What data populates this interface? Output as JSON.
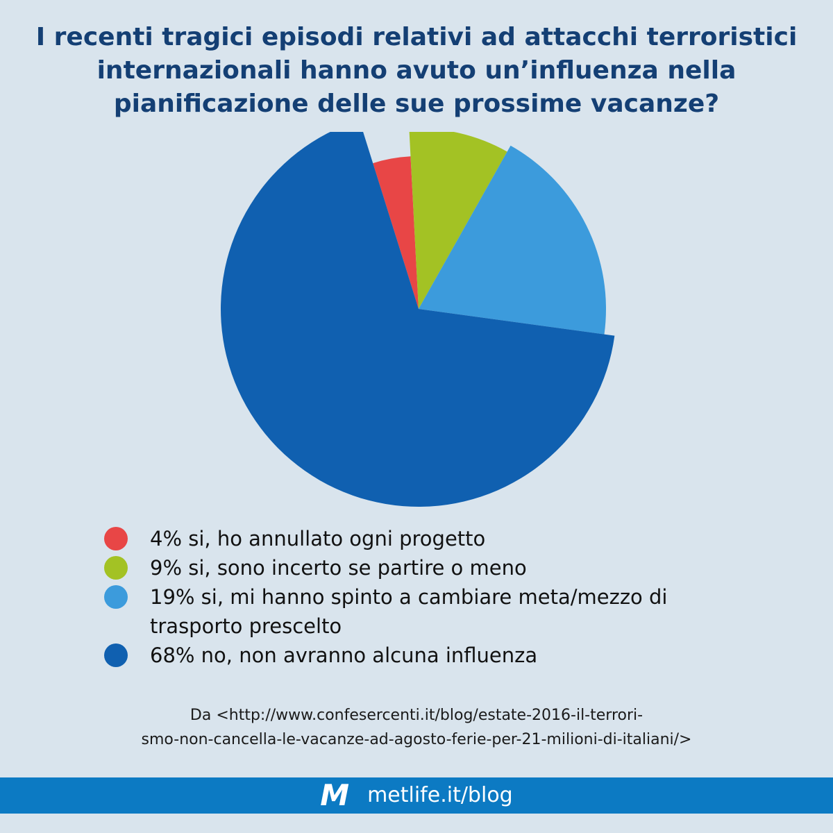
{
  "title": {
    "lines": [
      "I recenti tragici episodi relativi ad attacchi terroristici",
      "internazionali hanno avuto un’influenza nella",
      "pianificazione delle sue prossime vacanze?"
    ]
  },
  "chart_data": {
    "type": "pie",
    "title": "I recenti tragici episodi relativi ad attacchi terroristici internazionali hanno avuto un’influenza nella pianificazione delle sue prossime vacanze?",
    "categories": [
      "si, ho annullato ogni progetto",
      "si, sono incerto se partire o meno",
      "si, mi hanno spinto a cambiare meta/mezzo di trasporto prescelto",
      "no, non avranno alcuna influenza"
    ],
    "values": [
      4,
      9,
      19,
      68
    ],
    "colors": [
      "#e84646",
      "#a3c224",
      "#3c9bdc",
      "#1060b0"
    ],
    "legend_position": "bottom"
  },
  "legend": [
    {
      "text": "4% si, ho annullato ogni progetto",
      "color": "#e84646"
    },
    {
      "text": "9% si, sono incerto se partire o meno",
      "color": "#a3c224"
    },
    {
      "text": "19% si, mi hanno spinto a cambiare meta/mezzo di\ntrasporto prescelto",
      "color": "#3c9bdc"
    },
    {
      "text": "68% no, non avranno alcuna influenza",
      "color": "#1060b0"
    }
  ],
  "source": {
    "lines": [
      "Da <http://www.confesercenti.it/blog/estate-2016-il-terrori-",
      "smo-non-cancella-le-vacanze-ad-agosto-ferie-per-21-milioni-di-italiani/>"
    ]
  },
  "footer": {
    "logo": "M",
    "url": "metlife.it/blog",
    "color": "#0c7ac3"
  }
}
